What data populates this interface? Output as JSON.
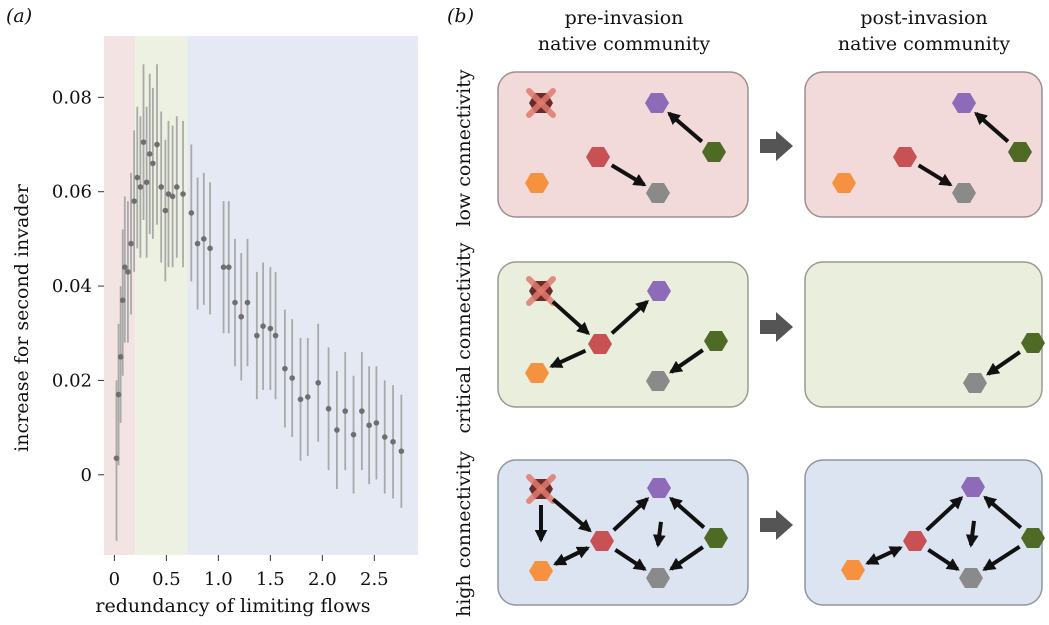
{
  "panel_a": {
    "label": "(a)",
    "ylabel": "increase for second invader",
    "xlabel": "redundancy of limiting flows",
    "regions": [
      {
        "x0": -0.1,
        "x1": 0.2,
        "color": "#f3e3e3"
      },
      {
        "x0": 0.2,
        "x1": 0.7,
        "color": "#edf1e1"
      },
      {
        "x0": 0.7,
        "x1": 2.92,
        "color": "#e4e9f4"
      }
    ]
  },
  "panel_b": {
    "label": "(b)",
    "col1_line1": "pre-invasion",
    "col1_line2": "native community",
    "col2_line1": "post-invasion",
    "col2_line2": "native community",
    "row1": "low connectivity",
    "row2": "critical connectivity",
    "row3": "high connectivity",
    "colors": {
      "low_box": "#f2dada",
      "critical_box": "#e9eedd",
      "high_box": "#dbe4f0",
      "purple": "#8e6bb8",
      "green": "#4f6a24",
      "red": "#c85154",
      "orange": "#f6923f",
      "gray": "#8a8a8a",
      "invader": "#6b2a2a",
      "cross": "#e07a6e"
    }
  },
  "chart_data": {
    "type": "scatter",
    "xlabel": "redundancy of limiting flows",
    "ylabel": "increase for second invader",
    "xlim": [
      -0.1,
      2.92
    ],
    "ylim": [
      -0.017,
      0.093
    ],
    "xticks": [
      "0",
      "0.5",
      "1.0",
      "1.5",
      "2.0",
      "2.5"
    ],
    "xtick_values": [
      0,
      0.5,
      1.0,
      1.5,
      2.0,
      2.5
    ],
    "yticks": [
      "0",
      "0.02",
      "0.04",
      "0.06",
      "0.08"
    ],
    "ytick_values": [
      0,
      0.02,
      0.04,
      0.06,
      0.08
    ],
    "series": [
      {
        "points": [
          {
            "x": 0.02,
            "y": 0.0035,
            "lo": -0.014,
            "hi": 0.02
          },
          {
            "x": 0.04,
            "y": 0.017,
            "lo": 0.002,
            "hi": 0.032
          },
          {
            "x": 0.06,
            "y": 0.025,
            "lo": 0.011,
            "hi": 0.04
          },
          {
            "x": 0.08,
            "y": 0.037,
            "lo": 0.021,
            "hi": 0.052
          },
          {
            "x": 0.1,
            "y": 0.044,
            "lo": 0.028,
            "hi": 0.059
          },
          {
            "x": 0.13,
            "y": 0.043,
            "lo": 0.028,
            "hi": 0.058
          },
          {
            "x": 0.16,
            "y": 0.049,
            "lo": 0.034,
            "hi": 0.064
          },
          {
            "x": 0.19,
            "y": 0.058,
            "lo": 0.043,
            "hi": 0.073
          },
          {
            "x": 0.22,
            "y": 0.063,
            "lo": 0.048,
            "hi": 0.078
          },
          {
            "x": 0.25,
            "y": 0.061,
            "lo": 0.046,
            "hi": 0.076
          },
          {
            "x": 0.28,
            "y": 0.0705,
            "lo": 0.054,
            "hi": 0.087
          },
          {
            "x": 0.31,
            "y": 0.062,
            "lo": 0.046,
            "hi": 0.078
          },
          {
            "x": 0.34,
            "y": 0.068,
            "lo": 0.051,
            "hi": 0.085
          },
          {
            "x": 0.37,
            "y": 0.066,
            "lo": 0.05,
            "hi": 0.082
          },
          {
            "x": 0.41,
            "y": 0.07,
            "lo": 0.053,
            "hi": 0.087
          },
          {
            "x": 0.45,
            "y": 0.061,
            "lo": 0.045,
            "hi": 0.077
          },
          {
            "x": 0.49,
            "y": 0.056,
            "lo": 0.041,
            "hi": 0.071
          },
          {
            "x": 0.52,
            "y": 0.0595,
            "lo": 0.044,
            "hi": 0.075
          },
          {
            "x": 0.56,
            "y": 0.059,
            "lo": 0.044,
            "hi": 0.074
          },
          {
            "x": 0.6,
            "y": 0.061,
            "lo": 0.046,
            "hi": 0.076
          },
          {
            "x": 0.66,
            "y": 0.0595,
            "lo": 0.044,
            "hi": 0.075
          },
          {
            "x": 0.74,
            "y": 0.0555,
            "lo": 0.041,
            "hi": 0.07
          },
          {
            "x": 0.8,
            "y": 0.049,
            "lo": 0.035,
            "hi": 0.063
          },
          {
            "x": 0.86,
            "y": 0.05,
            "lo": 0.036,
            "hi": 0.064
          },
          {
            "x": 0.92,
            "y": 0.048,
            "lo": 0.034,
            "hi": 0.062
          },
          {
            "x": 1.05,
            "y": 0.044,
            "lo": 0.03,
            "hi": 0.058
          },
          {
            "x": 1.1,
            "y": 0.044,
            "lo": 0.03,
            "hi": 0.058
          },
          {
            "x": 1.16,
            "y": 0.0365,
            "lo": 0.023,
            "hi": 0.05
          },
          {
            "x": 1.22,
            "y": 0.0335,
            "lo": 0.02,
            "hi": 0.047
          },
          {
            "x": 1.28,
            "y": 0.0365,
            "lo": 0.023,
            "hi": 0.05
          },
          {
            "x": 1.37,
            "y": 0.0295,
            "lo": 0.016,
            "hi": 0.043
          },
          {
            "x": 1.43,
            "y": 0.0315,
            "lo": 0.018,
            "hi": 0.045
          },
          {
            "x": 1.5,
            "y": 0.031,
            "lo": 0.018,
            "hi": 0.044
          },
          {
            "x": 1.55,
            "y": 0.0295,
            "lo": 0.016,
            "hi": 0.043
          },
          {
            "x": 1.64,
            "y": 0.0225,
            "lo": 0.01,
            "hi": 0.035
          },
          {
            "x": 1.71,
            "y": 0.0205,
            "lo": 0.008,
            "hi": 0.033
          },
          {
            "x": 1.79,
            "y": 0.016,
            "lo": 0.003,
            "hi": 0.029
          },
          {
            "x": 1.86,
            "y": 0.0165,
            "lo": 0.004,
            "hi": 0.029
          },
          {
            "x": 1.96,
            "y": 0.0195,
            "lo": 0.007,
            "hi": 0.032
          },
          {
            "x": 2.06,
            "y": 0.014,
            "lo": 0.001,
            "hi": 0.027
          },
          {
            "x": 2.14,
            "y": 0.0095,
            "lo": -0.003,
            "hi": 0.022
          },
          {
            "x": 2.22,
            "y": 0.0135,
            "lo": 0.001,
            "hi": 0.026
          },
          {
            "x": 2.3,
            "y": 0.0085,
            "lo": -0.004,
            "hi": 0.021
          },
          {
            "x": 2.38,
            "y": 0.0135,
            "lo": 0.001,
            "hi": 0.026
          },
          {
            "x": 2.45,
            "y": 0.0105,
            "lo": -0.002,
            "hi": 0.023
          },
          {
            "x": 2.52,
            "y": 0.011,
            "lo": -0.001,
            "hi": 0.023
          },
          {
            "x": 2.6,
            "y": 0.008,
            "lo": -0.004,
            "hi": 0.02
          },
          {
            "x": 2.68,
            "y": 0.007,
            "lo": -0.005,
            "hi": 0.019
          },
          {
            "x": 2.76,
            "y": 0.005,
            "lo": -0.007,
            "hi": 0.017
          }
        ]
      }
    ]
  }
}
